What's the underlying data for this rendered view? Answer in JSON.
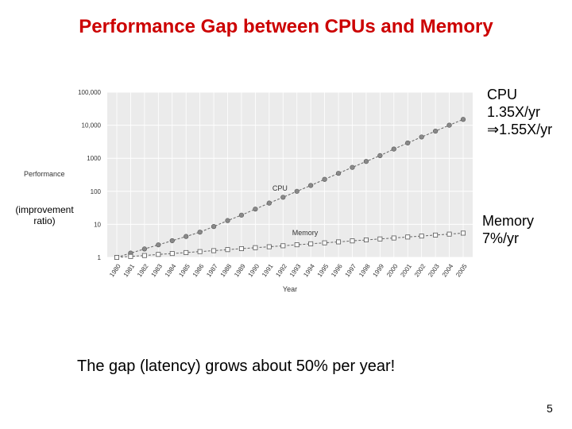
{
  "slide": {
    "title": "Performance Gap between CPUs and Memory",
    "cpu_note": [
      "CPU",
      "1.35X/yr",
      "⇒1.55X/yr"
    ],
    "memory_note": [
      "Memory",
      "7%/yr"
    ],
    "y_sublabel": [
      "(improvement",
      "ratio)"
    ],
    "caption": "The gap (latency) grows about 50% per year!",
    "page_number": "5"
  },
  "chart_data": {
    "type": "line",
    "xlabel": "Year",
    "ylabel": "Performance",
    "yscale": "log",
    "ylim": [
      1,
      100000
    ],
    "yticks": [
      "1",
      "10",
      "100",
      "1000",
      "10,000",
      "100,000"
    ],
    "grid": true,
    "categories": [
      "1980",
      "1981",
      "1982",
      "1983",
      "1984",
      "1985",
      "1986",
      "1987",
      "1988",
      "1989",
      "1990",
      "1991",
      "1992",
      "1993",
      "1994",
      "1995",
      "1996",
      "1997",
      "1998",
      "1999",
      "2000",
      "2001",
      "2002",
      "2003",
      "2004",
      "2005"
    ],
    "series": [
      {
        "name": "CPU",
        "marker": "circle",
        "values": [
          1,
          1.35,
          1.8,
          2.4,
          3.2,
          4.3,
          5.8,
          8.6,
          13,
          19,
          29,
          44,
          66,
          100,
          150,
          230,
          350,
          530,
          800,
          1200,
          1900,
          2900,
          4400,
          6600,
          10000,
          15000
        ]
      },
      {
        "name": "Memory",
        "marker": "square",
        "values": [
          1,
          1.07,
          1.14,
          1.23,
          1.31,
          1.4,
          1.5,
          1.6,
          1.72,
          1.84,
          1.97,
          2.1,
          2.25,
          2.41,
          2.58,
          2.76,
          2.95,
          3.16,
          3.38,
          3.62,
          3.87,
          4.14,
          4.43,
          4.74,
          5.07,
          5.43
        ]
      }
    ]
  }
}
